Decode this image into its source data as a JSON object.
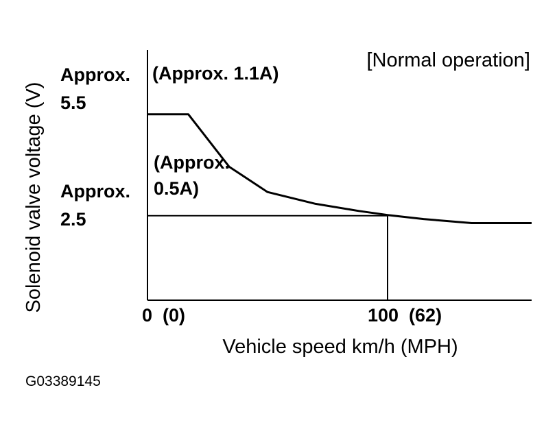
{
  "chart_data": {
    "type": "line",
    "title": "",
    "condition_label": "[Normal operation]",
    "xlabel": "Vehicle speed km/h (MPH)",
    "ylabel": "Solenoid valve voltage (V)",
    "xlim": [
      0,
      160
    ],
    "ylim": [
      0,
      7.4
    ],
    "grid": false,
    "x_ticks": [
      {
        "value": 0,
        "label": "0  (0)"
      },
      {
        "value": 100,
        "label": "100  (62)"
      }
    ],
    "y_ticks": [
      {
        "value": 5.5,
        "label_line1": "Approx.",
        "label_line2": "5.5"
      },
      {
        "value": 2.5,
        "label_line1": "Approx.",
        "label_line2": "2.5"
      }
    ],
    "series": [
      {
        "x": [
          0,
          17,
          34,
          50,
          70,
          88,
          100,
          115,
          135,
          160
        ],
        "y": [
          5.5,
          5.5,
          3.95,
          3.2,
          2.85,
          2.64,
          2.52,
          2.4,
          2.28,
          2.28
        ]
      }
    ],
    "reference_lines": [
      {
        "axis": "y",
        "value": 2.5,
        "from": 0,
        "to": 100
      },
      {
        "axis": "x",
        "value": 100,
        "from": 0,
        "to": 2.5
      }
    ],
    "annotations": [
      {
        "id": "high",
        "text": "(Approx.  1.1A)",
        "x": 3,
        "y": 5.72
      },
      {
        "id": "low",
        "line1": "(Approx.",
        "line2": "0.5A)",
        "x": 3,
        "y": 3.55
      }
    ]
  },
  "figure_id": "G03389145"
}
